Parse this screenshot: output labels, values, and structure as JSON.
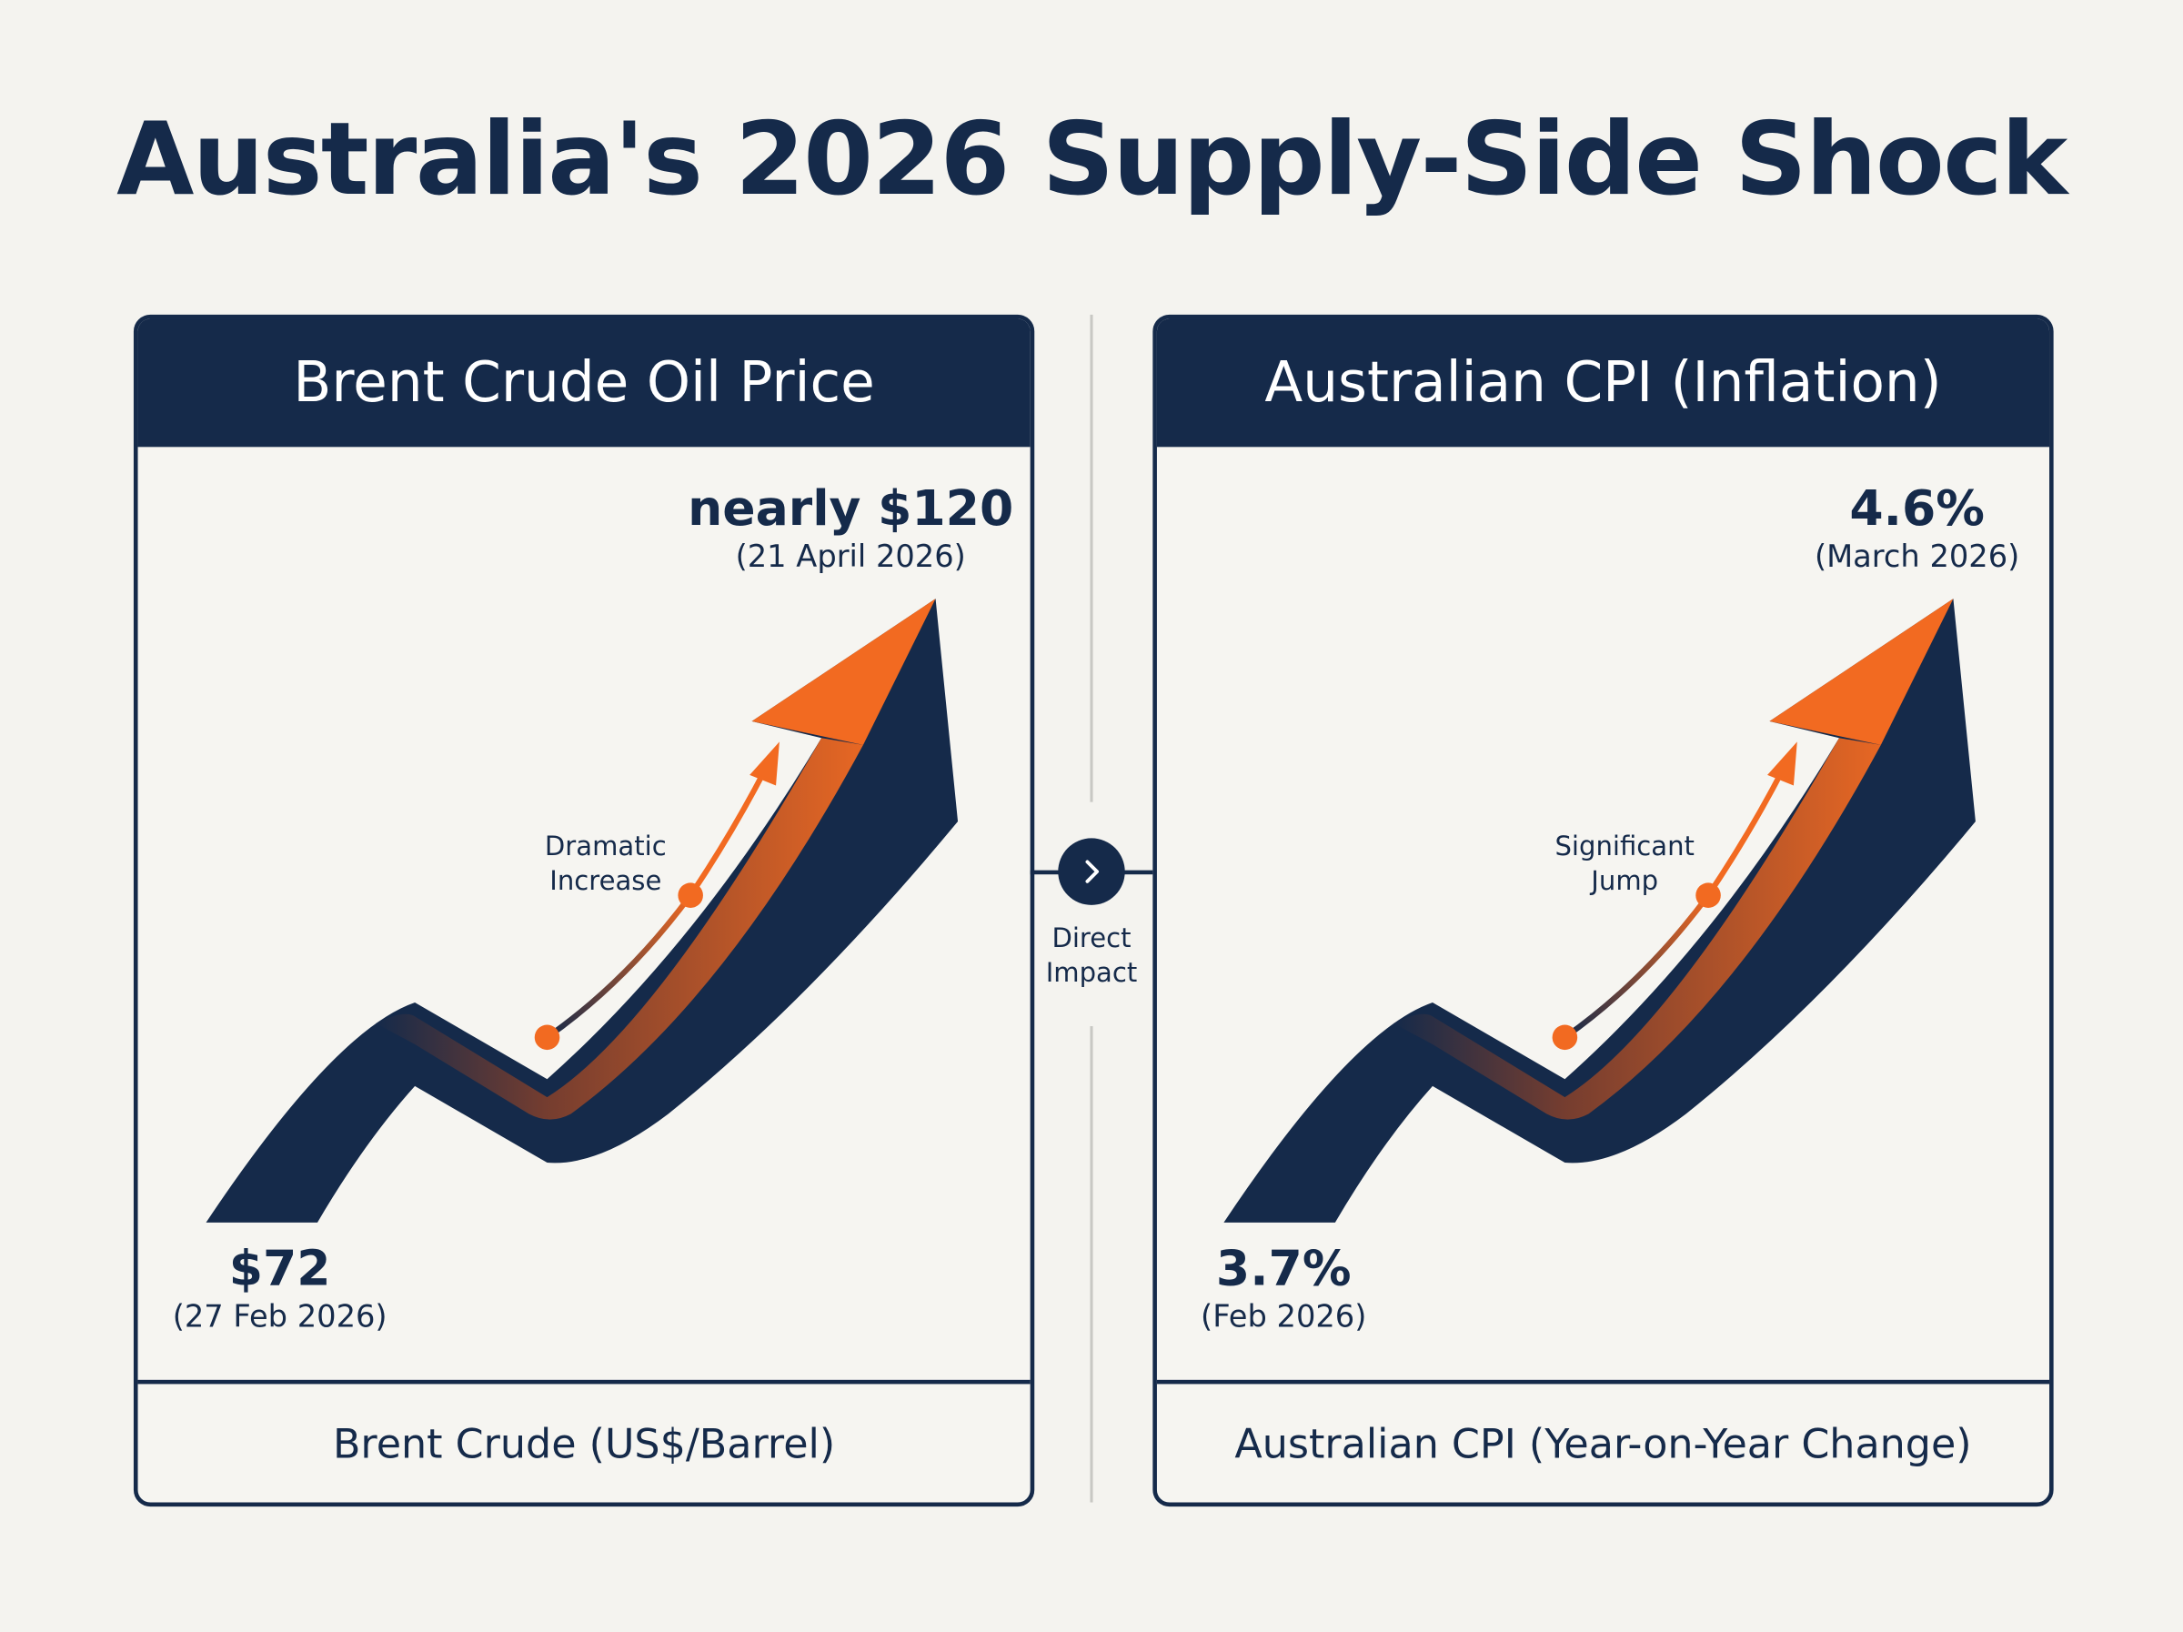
{
  "title": "Australia's 2026 Supply-Side Shock",
  "colors": {
    "navy": "#152a4a",
    "orange": "#f26a21",
    "background": "#f4f3ef"
  },
  "left_panel": {
    "header": "Brent Crude Oil Price",
    "end_value": "nearly $120",
    "end_date": "(21 April 2026)",
    "start_value": "$72",
    "start_date": "(27 Feb 2026)",
    "annotation": [
      "Dramatic",
      "Increase"
    ],
    "footer": "Brent Crude (US$/Barrel)"
  },
  "connector": {
    "icon": "chevron-right-icon",
    "label": [
      "Direct",
      "Impact"
    ]
  },
  "right_panel": {
    "header": "Australian CPI (Inflation)",
    "end_value": "4.6%",
    "end_date": "(March 2026)",
    "start_value": "3.7%",
    "start_date": "(Feb 2026)",
    "annotation": [
      "Significant",
      "Jump"
    ],
    "footer": "Australian CPI (Year-on-Year Change)"
  }
}
